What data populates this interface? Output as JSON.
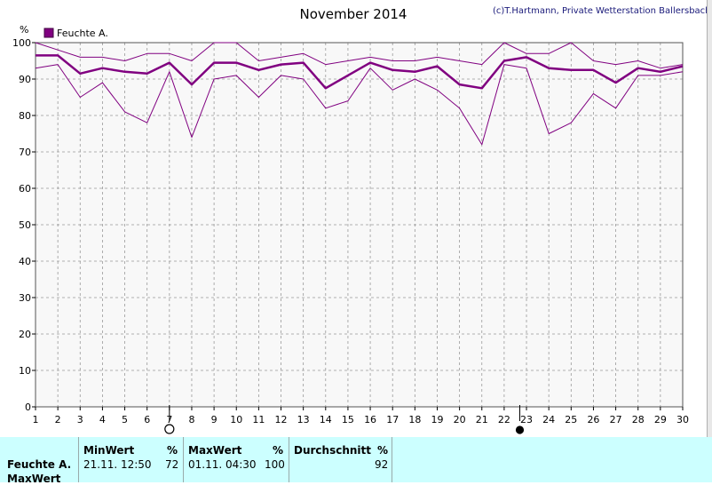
{
  "credit": "(c)T.Hartmann, Private Wetterstation Ballersbach",
  "chart_data": {
    "type": "line",
    "title": "November 2014",
    "ylabel": "%",
    "legend": "Feuchte A.",
    "legend_color": "#800080",
    "ylim": [
      0,
      100
    ],
    "yticks": [
      0,
      10,
      20,
      30,
      40,
      50,
      60,
      70,
      80,
      90,
      100
    ],
    "x": [
      1,
      2,
      3,
      4,
      5,
      6,
      7,
      8,
      9,
      10,
      11,
      12,
      13,
      14,
      15,
      16,
      17,
      18,
      19,
      20,
      21,
      22,
      23,
      24,
      25,
      26,
      27,
      28,
      29,
      30
    ],
    "grid": true,
    "series": [
      {
        "role": "max",
        "values": [
          100,
          98,
          96,
          96,
          95,
          97,
          97,
          95,
          100,
          100,
          95,
          96,
          97,
          94,
          95,
          96,
          95,
          95,
          96,
          95,
          94,
          100,
          97,
          97,
          100,
          95,
          94,
          95,
          93,
          94
        ]
      },
      {
        "role": "avg",
        "values": [
          96.5,
          96.5,
          91.5,
          93,
          92,
          91.5,
          94.5,
          88.5,
          94.5,
          94.5,
          92.5,
          94,
          94.5,
          87.5,
          91,
          94.5,
          92.5,
          92,
          93.5,
          88.5,
          87.5,
          95,
          96,
          93,
          92.5,
          92.5,
          89,
          93,
          92,
          93.5
        ]
      },
      {
        "role": "min",
        "values": [
          93,
          94,
          85,
          89,
          81,
          78,
          92,
          74,
          90,
          91,
          85,
          91,
          90,
          82,
          84,
          93,
          87,
          90,
          87,
          82,
          72,
          94,
          93,
          75,
          78,
          86,
          82,
          91,
          91,
          92
        ]
      }
    ],
    "markers": [
      {
        "x": 7,
        "symbol": "open-circle"
      },
      {
        "x": 22.7,
        "symbol": "filled-circle"
      }
    ]
  },
  "stats": {
    "row_label_1": "Feuchte A.",
    "row_label_2": "MaxWert",
    "min_header": "MinWert",
    "min_unit": "%",
    "min_time": "21.11.  12:50",
    "min_value": "72",
    "max_header": "MaxWert",
    "max_unit": "%",
    "max_time": "01.11.  04:30",
    "max_value": "100",
    "avg_header": "Durchschnitt",
    "avg_unit": "%",
    "avg_value": "92"
  }
}
